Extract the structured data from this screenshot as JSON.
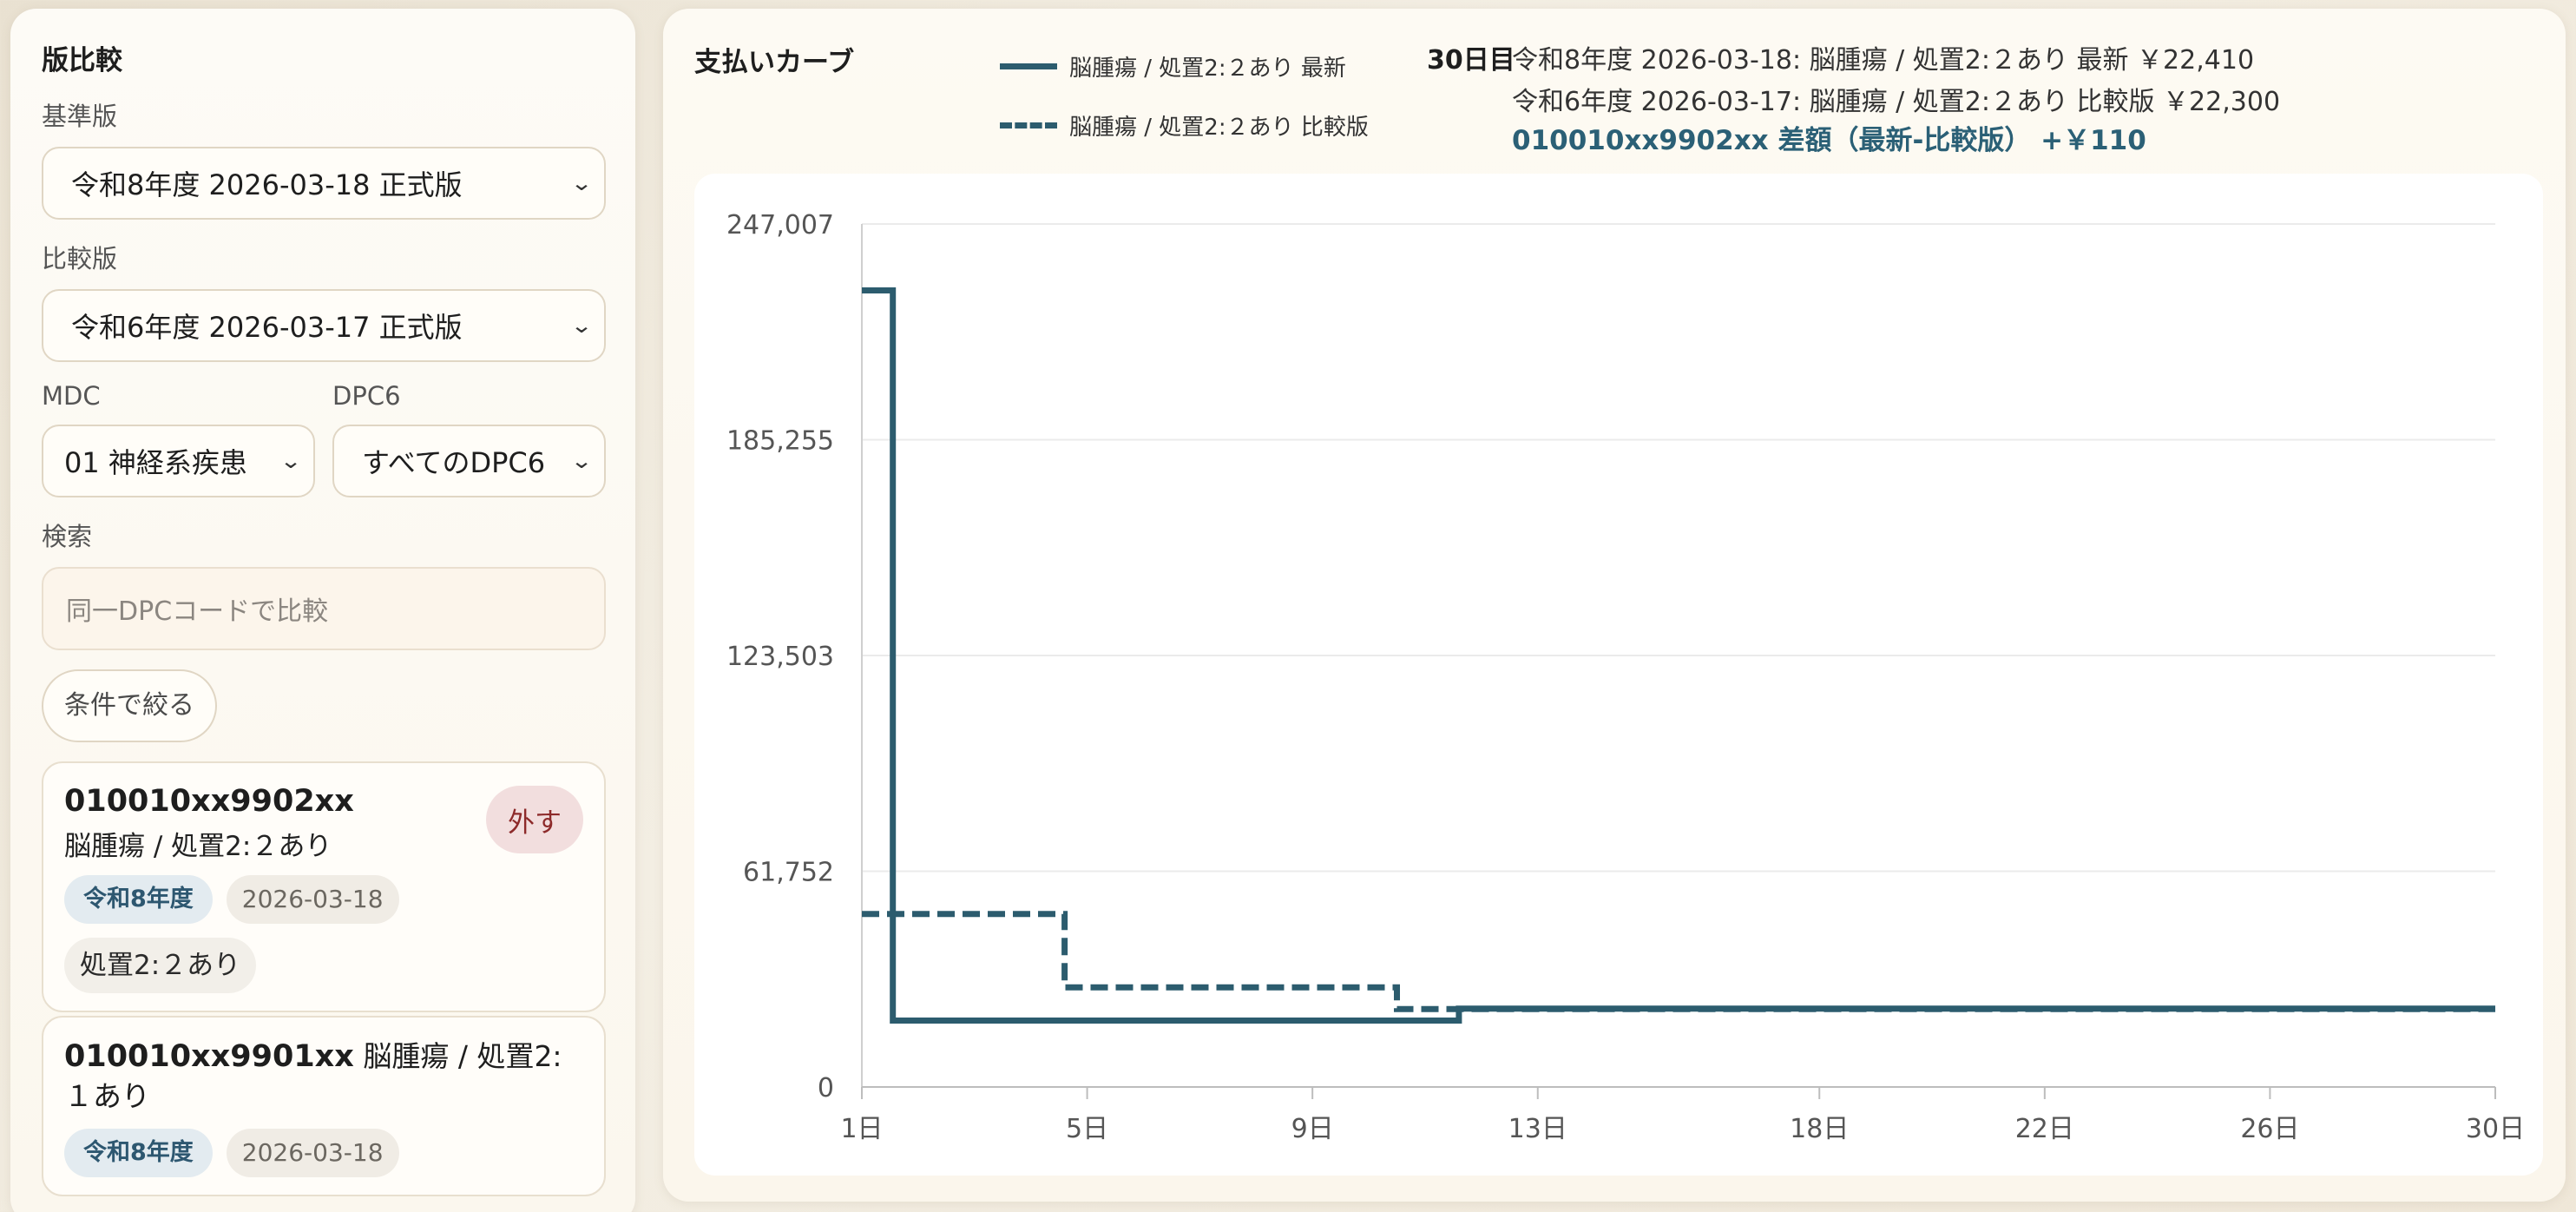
{
  "sidebar": {
    "title": "版比較",
    "base_label": "基準版",
    "base_value": "令和8年度 2026-03-18 正式版",
    "compare_label": "比較版",
    "compare_value": "令和6年度 2026-03-17 正式版",
    "mdc_label": "MDC",
    "mdc_value": "01 神経系疾患",
    "dpc6_label": "DPC6",
    "dpc6_value": "すべてのDPC6",
    "search_label": "検索",
    "search_placeholder": "同一DPCコードで比較",
    "filter_button": "条件で絞る",
    "cards": [
      {
        "code": "010010xx9902xx",
        "name": "脳腫瘍 / 処置2:２あり",
        "remove": "外す",
        "era": "令和8年度",
        "date": "2026-03-18",
        "tag": "処置2:２あり"
      },
      {
        "code": "010010xx9901xx",
        "name": "脳腫瘍 / 処置2:１あり",
        "era": "令和8年度",
        "date": "2026-03-18"
      }
    ]
  },
  "chart_panel": {
    "title": "支払いカーブ",
    "legend": [
      {
        "label": "脳腫瘍 / 処置2:２あり 最新",
        "style": "solid"
      },
      {
        "label": "脳腫瘍 / 処置2:２あり 比較版",
        "style": "dashed"
      }
    ],
    "info_day": "30日目",
    "info_line1": "令和8年度 2026-03-18: 脳腫瘍 / 処置2:２あり 最新 ￥22,410",
    "info_line2": "令和6年度 2026-03-17: 脳腫瘍 / 処置2:２あり 比較版 ￥22,300",
    "info_diff": "010010xx9902xx 差額（最新-比較版） +￥110",
    "line_color": "#2c5c6e"
  },
  "chart_data": {
    "type": "line",
    "step": true,
    "xlim": [
      1,
      30
    ],
    "ylim": [
      0,
      247007
    ],
    "x_ticks": [
      "1日",
      "5日",
      "9日",
      "13日",
      "18日",
      "22日",
      "26日",
      "30日"
    ],
    "y_ticks": [
      "247,007",
      "185,255",
      "123,503",
      "61,752",
      "0"
    ],
    "grid": true,
    "series": [
      {
        "name": "脳腫瘍 / 処置2:２あり 最新",
        "style": "solid",
        "points": [
          [
            1,
            228000
          ],
          [
            1.55,
            228000
          ],
          [
            1.55,
            19000
          ],
          [
            11.6,
            19000
          ],
          [
            11.6,
            22410
          ],
          [
            30,
            22410
          ]
        ]
      },
      {
        "name": "脳腫瘍 / 処置2:２あり 比較版",
        "style": "dashed",
        "points": [
          [
            1,
            49500
          ],
          [
            4.6,
            49500
          ],
          [
            4.6,
            28500
          ],
          [
            10.5,
            28500
          ],
          [
            10.5,
            22300
          ],
          [
            30,
            22300
          ]
        ]
      }
    ]
  }
}
